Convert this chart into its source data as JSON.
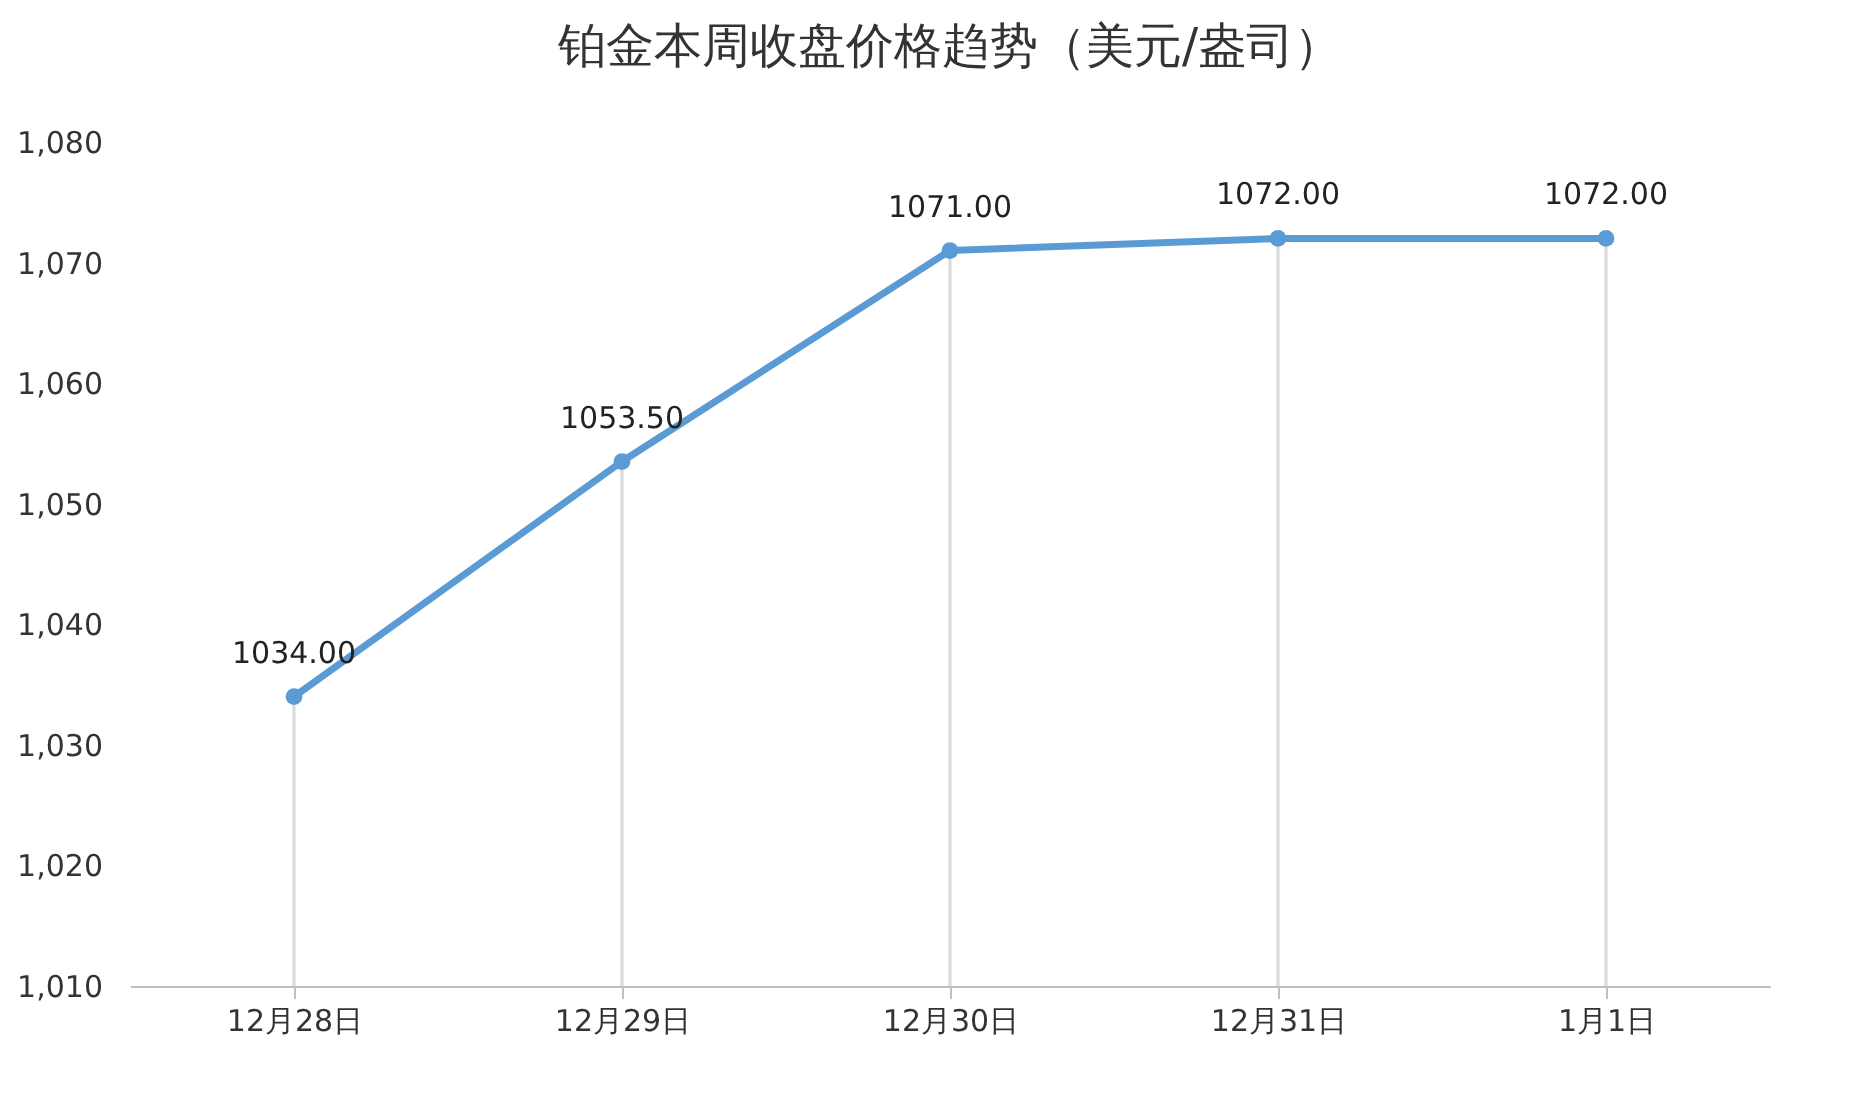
{
  "chart_data": {
    "type": "line",
    "title": "铂金本周收盘价格趋势（美元/盎司）",
    "categories": [
      "12月28日",
      "12月29日",
      "12月30日",
      "12月31日",
      "1月1日"
    ],
    "series": [
      {
        "color": "#5b9bd5",
        "values": [
          1034,
          1053.5,
          1071,
          1072,
          1072
        ],
        "value_labels": [
          "1034.00",
          "1053.50",
          "1071.00",
          "1072.00",
          "1072.00"
        ]
      }
    ],
    "ylim": [
      1010,
      1080
    ],
    "yticks": [
      {
        "value": 1010,
        "label": "1,010"
      },
      {
        "value": 1020,
        "label": "1,020"
      },
      {
        "value": 1030,
        "label": "1,030"
      },
      {
        "value": 1040,
        "label": "1,040"
      },
      {
        "value": 1050,
        "label": "1,050"
      },
      {
        "value": 1060,
        "label": "1,060"
      },
      {
        "value": 1070,
        "label": "1,070"
      },
      {
        "value": 1080,
        "label": "1,080"
      }
    ],
    "grid": "x",
    "legend": false,
    "marker": "circle",
    "line_style": "solid"
  }
}
